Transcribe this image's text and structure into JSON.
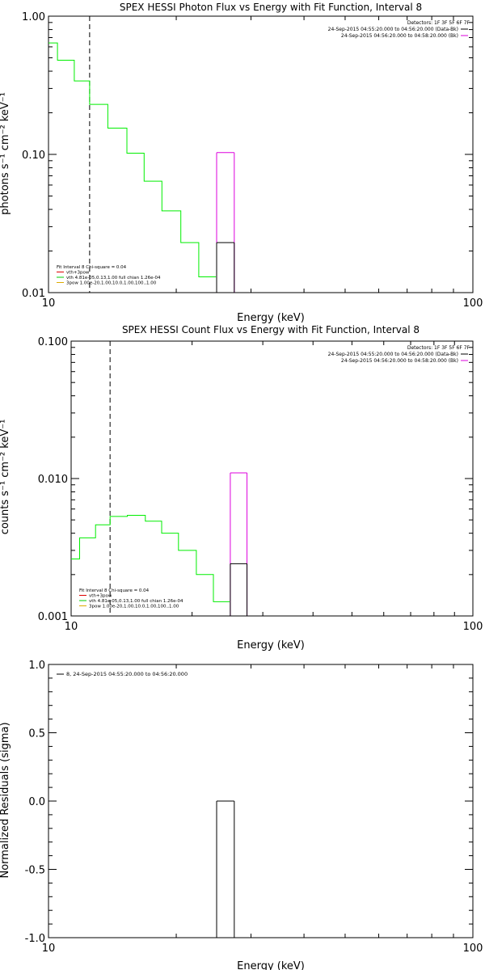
{
  "chart_data": [
    {
      "type": "line",
      "title": "SPEX HESSI Photon Flux vs Energy with Fit Function, Interval 8",
      "xlabel": "Energy (keV)",
      "ylabel": "photons s⁻¹ cm⁻² keV⁻¹",
      "xscale": "log",
      "yscale": "log",
      "xlim": [
        10,
        100
      ],
      "ylim": [
        0.01,
        1.0
      ],
      "xticks": [
        {
          "v": 10,
          "label": "10"
        },
        {
          "v": 100,
          "label": "100"
        }
      ],
      "yticks": [
        {
          "v": 0.01,
          "label": "0.01"
        },
        {
          "v": 0.1,
          "label": "0.10"
        },
        {
          "v": 1.0,
          "label": "1.00"
        }
      ],
      "vline_x": 12.5,
      "header": [
        {
          "text": "Detectors: 1F 3F 5F 6F 7F",
          "color": ""
        },
        {
          "text": "24-Sep-2015 04:55:20.000 to 04:56:20.000 (Data-Bk)",
          "color": "#000000"
        },
        {
          "text": "24-Sep-2015 04:56:20.000 to 04:58:20.000 (Bk)",
          "color": "#dd00dd"
        }
      ],
      "legend": [
        {
          "text": "Fit Interval  8    Chi-square = 0.04",
          "color": ""
        },
        {
          "text": "vth+3pow",
          "color": "#dd0000"
        },
        {
          "text": "vth 4.81e-05,0.13,1.00  full chian 1.26e-04",
          "color": "#00cc00"
        },
        {
          "text": "3pow 1.00e-20,1.00,10.0,1.00,100.,1.00",
          "color": "#ddaa00"
        }
      ],
      "series": [
        {
          "color": "#00ee00",
          "edges": [
            9.8,
            10.5,
            11.5,
            12.5,
            13.8,
            15.3,
            16.8,
            18.5,
            20.5,
            22.6,
            24.8
          ],
          "values": [
            0.64,
            0.48,
            0.34,
            0.23,
            0.155,
            0.102,
            0.064,
            0.039,
            0.023,
            0.013
          ]
        },
        {
          "color": "#dd00dd",
          "edges": [
            24.9,
            27.4
          ],
          "values": [
            0.103
          ]
        },
        {
          "color": "#000000",
          "edges": [
            24.9,
            27.4
          ],
          "values": [
            0.023
          ]
        }
      ]
    },
    {
      "type": "line",
      "title": "SPEX HESSI Count Flux vs Energy with Fit Function, Interval 8",
      "xlabel": "Energy (keV)",
      "ylabel": "counts s⁻¹ cm⁻² keV⁻¹",
      "xscale": "log",
      "yscale": "log",
      "xlim": [
        10,
        100
      ],
      "ylim": [
        0.001,
        0.1
      ],
      "xticks": [
        {
          "v": 10,
          "label": "10"
        },
        {
          "v": 100,
          "label": "100"
        }
      ],
      "yticks": [
        {
          "v": 0.001,
          "label": "0.001"
        },
        {
          "v": 0.01,
          "label": "0.010"
        },
        {
          "v": 0.1,
          "label": "0.100"
        }
      ],
      "vline_x": 12.5,
      "header": [
        {
          "text": "Detectors: 1F 3F 5F 6F 7F",
          "color": ""
        },
        {
          "text": "24-Sep-2015 04:55:20.000 to 04:56:20.000 (Data-Bk)",
          "color": "#000000"
        },
        {
          "text": "24-Sep-2015 04:56:20.000 to 04:58:20.000 (Bk)",
          "color": "#dd00dd"
        }
      ],
      "legend": [
        {
          "text": "Fit Interval  8    Chi-square = 0.04",
          "color": ""
        },
        {
          "text": "vth+3pow",
          "color": "#dd0000"
        },
        {
          "text": "vth 4.81e-05,0.13,1.00  full chian 1.26e-04",
          "color": "#00cc00"
        },
        {
          "text": "3pow 1.00e-20,1.00,10.0,1.00,100.,1.00",
          "color": "#ddaa00"
        }
      ],
      "series": [
        {
          "color": "#00ee00",
          "edges": [
            9.8,
            10.5,
            11.5,
            12.5,
            13.8,
            15.3,
            16.8,
            18.5,
            20.5,
            22.6,
            24.8
          ],
          "values": [
            0.0026,
            0.0037,
            0.0046,
            0.0053,
            0.0054,
            0.0049,
            0.004,
            0.003,
            0.002,
            0.00127
          ]
        },
        {
          "color": "#dd00dd",
          "edges": [
            24.9,
            27.4
          ],
          "values": [
            0.011
          ]
        },
        {
          "color": "#000000",
          "edges": [
            24.9,
            27.4
          ],
          "values": [
            0.0024
          ]
        }
      ]
    },
    {
      "type": "line",
      "title": "",
      "xlabel": "Energy (keV)",
      "ylabel": "Normalized Residuals (sigma)",
      "xscale": "log",
      "yscale": "linear",
      "xlim": [
        10,
        100
      ],
      "ylim": [
        -1.0,
        1.0
      ],
      "xticks": [
        {
          "v": 10,
          "label": "10"
        },
        {
          "v": 100,
          "label": "100"
        }
      ],
      "yticks": [
        {
          "v": -1.0,
          "label": "-1.0"
        },
        {
          "v": -0.5,
          "label": "-0.5"
        },
        {
          "v": 0.0,
          "label": "0.0"
        },
        {
          "v": 0.5,
          "label": "0.5"
        },
        {
          "v": 1.0,
          "label": "1.0"
        }
      ],
      "legend": [
        {
          "text": "8, 24-Sep-2015 04:55:20.000 to 04:56:20.000",
          "color": "#000000"
        }
      ],
      "series": [
        {
          "color": "#000000",
          "edges": [
            24.9,
            27.4
          ],
          "values": [
            0.0
          ]
        }
      ]
    }
  ]
}
